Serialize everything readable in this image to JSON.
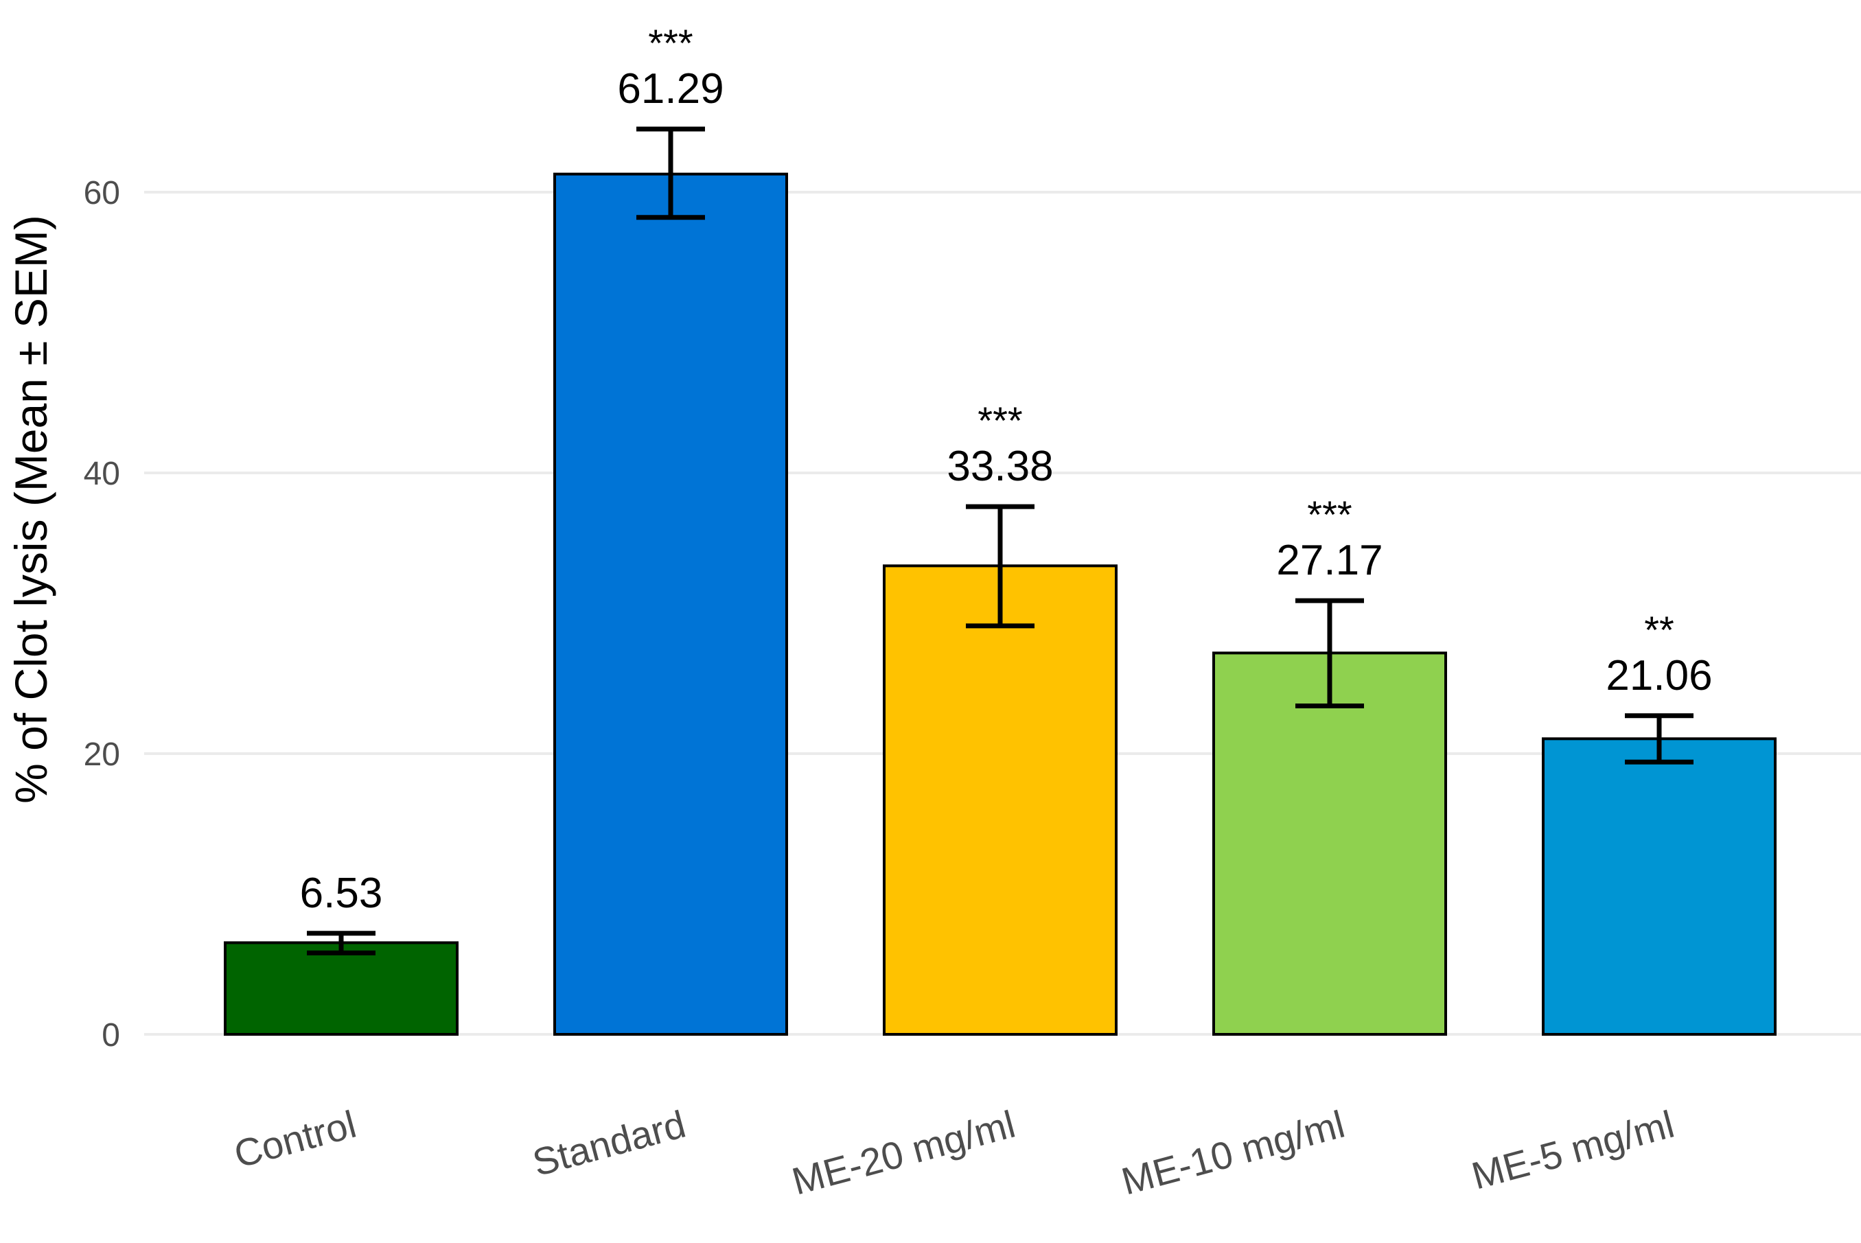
{
  "chart_data": {
    "type": "bar",
    "title": "",
    "xlabel": "",
    "ylabel": "% of Clot lysis (Mean ± SEM)",
    "ylim": [
      0,
      68
    ],
    "yticks": [
      0,
      20,
      40,
      60
    ],
    "ytick_labels": [
      "0",
      "20",
      "40",
      "60"
    ],
    "categories": [
      "Control",
      "Standard",
      "ME-20 mg/ml",
      "ME-10 mg/ml",
      "ME-5 mg/ml"
    ],
    "values": [
      6.53,
      61.29,
      33.38,
      27.17,
      21.06
    ],
    "value_labels": [
      "6.53",
      "61.29",
      "33.38",
      "27.17",
      "21.06"
    ],
    "error_upper": [
      7.2,
      64.5,
      37.6,
      30.9,
      22.7
    ],
    "error_lower": [
      5.8,
      58.2,
      29.1,
      23.4,
      19.4
    ],
    "significance": [
      "",
      "***",
      "***",
      "***",
      "**"
    ],
    "colors": [
      "#006400",
      "#0074D6",
      "#FFC200",
      "#8FD14F",
      "#0095D3"
    ],
    "grid": true,
    "legend": "none"
  }
}
